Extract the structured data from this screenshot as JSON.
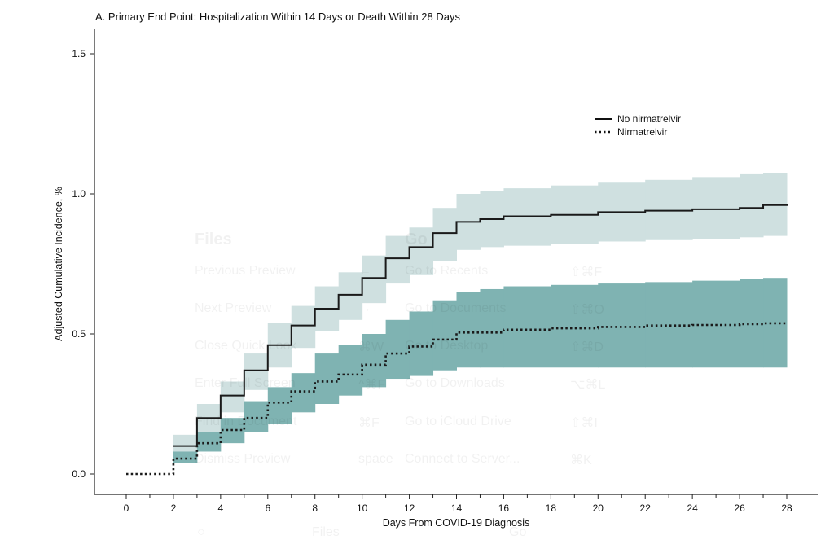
{
  "chart_data": {
    "type": "line",
    "title": "A. Primary End Point: Hospitalization Within 14 Days or Death Within 28 Days",
    "xlabel": "Days From COVID-19 Diagnosis",
    "ylabel": "Adjusted Cumulative Incidence, %",
    "xlim": [
      0,
      28
    ],
    "ylim": [
      0,
      1.5
    ],
    "xticks": [
      "0",
      "2",
      "4",
      "6",
      "8",
      "10",
      "12",
      "14",
      "16",
      "18",
      "20",
      "22",
      "24",
      "26",
      "28"
    ],
    "yticks": [
      "0.0",
      "0.5",
      "1.0",
      "1.5"
    ],
    "legend_position": "top-right",
    "step": true,
    "x": [
      0,
      2,
      3,
      4,
      5,
      6,
      7,
      8,
      9,
      10,
      11,
      12,
      13,
      14,
      15,
      16,
      18,
      20,
      22,
      24,
      26,
      27,
      28
    ],
    "series": [
      {
        "name": "No nirmatrelvir",
        "style": "solid",
        "start_day": 2,
        "values": [
          0,
          0.1,
          0.2,
          0.28,
          0.37,
          0.46,
          0.53,
          0.59,
          0.64,
          0.7,
          0.77,
          0.81,
          0.86,
          0.9,
          0.91,
          0.92,
          0.925,
          0.935,
          0.94,
          0.945,
          0.95,
          0.96,
          0.965
        ],
        "ci_lower": [
          0,
          0.07,
          0.15,
          0.22,
          0.3,
          0.38,
          0.45,
          0.51,
          0.55,
          0.61,
          0.68,
          0.71,
          0.76,
          0.8,
          0.81,
          0.815,
          0.82,
          0.83,
          0.835,
          0.84,
          0.845,
          0.85,
          0.85
        ],
        "ci_upper": [
          0,
          0.14,
          0.25,
          0.33,
          0.43,
          0.54,
          0.6,
          0.67,
          0.72,
          0.78,
          0.85,
          0.88,
          0.95,
          1.0,
          1.01,
          1.02,
          1.03,
          1.04,
          1.05,
          1.06,
          1.07,
          1.075,
          1.075
        ],
        "band_color": "#cfe0e0",
        "line_color": "#1a1a1a"
      },
      {
        "name": "Nirmatrelvir",
        "style": "dotted",
        "start_day": 0,
        "values": [
          0,
          0.055,
          0.11,
          0.157,
          0.2,
          0.255,
          0.295,
          0.33,
          0.355,
          0.39,
          0.43,
          0.455,
          0.48,
          0.505,
          0.505,
          0.515,
          0.52,
          0.525,
          0.53,
          0.532,
          0.535,
          0.538,
          0.54
        ],
        "ci_lower": [
          0,
          0.04,
          0.08,
          0.11,
          0.15,
          0.18,
          0.22,
          0.25,
          0.28,
          0.31,
          0.34,
          0.35,
          0.37,
          0.38,
          0.38,
          0.38,
          0.38,
          0.38,
          0.38,
          0.38,
          0.38,
          0.38,
          0.38
        ],
        "ci_upper": [
          0,
          0.08,
          0.15,
          0.2,
          0.26,
          0.31,
          0.36,
          0.43,
          0.46,
          0.5,
          0.55,
          0.58,
          0.62,
          0.65,
          0.66,
          0.67,
          0.675,
          0.68,
          0.685,
          0.69,
          0.695,
          0.7,
          0.7
        ],
        "band_color": "#7fb3b2",
        "line_color": "#1a1a1a"
      }
    ]
  },
  "overlay": {
    "files_heading": "Files",
    "go_heading": "Go",
    "files_items": [
      {
        "label": "Previous Preview",
        "shortcut": "←"
      },
      {
        "label": "Next Preview",
        "shortcut": "→"
      },
      {
        "label": "Close Quick Look",
        "shortcut": "⌘W"
      },
      {
        "label": "Enter Full Screen",
        "shortcut": "^⌘F"
      },
      {
        "label": "Find in Document",
        "shortcut": "⌘F"
      },
      {
        "label": "Dismiss Preview",
        "shortcut": "space"
      }
    ],
    "go_items": [
      {
        "label": "Go to Recents",
        "shortcut": "⇧⌘F"
      },
      {
        "label": "Go to Documents",
        "shortcut": "⇧⌘O"
      },
      {
        "label": "Go to Desktop",
        "shortcut": "⇧⌘D"
      },
      {
        "label": "Go to Downloads",
        "shortcut": "⌥⌘L"
      },
      {
        "label": "Go to iCloud Drive",
        "shortcut": "⇧⌘I"
      },
      {
        "label": "Connect to Server...",
        "shortcut": "⌘K"
      }
    ],
    "footer_tabs": [
      "Files",
      "Go"
    ]
  }
}
